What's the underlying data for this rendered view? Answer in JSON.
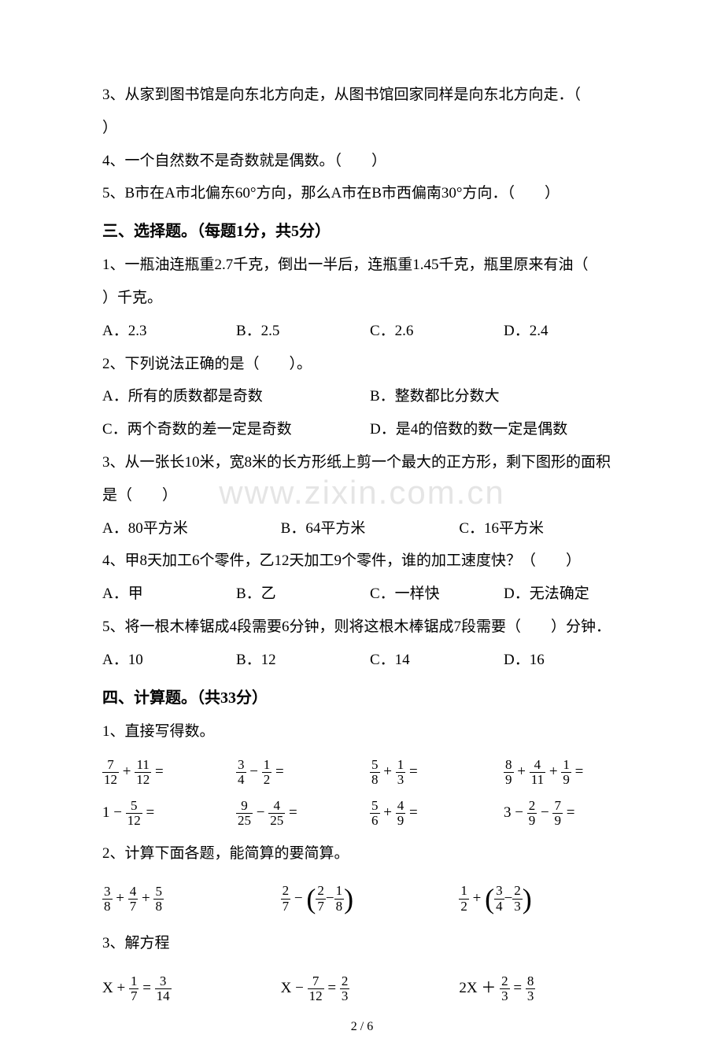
{
  "page": {
    "number": "2 / 6",
    "watermark": "www.zixin.com.cn"
  },
  "section2_continued": {
    "q3": "3、从家到图书馆是向东北方向走，从图书馆回家同样是向东北方向走．（",
    "q3_close": "）",
    "q4": "4、一个自然数不是奇数就是偶数。（　　）",
    "q5": "5、B市在A市北偏东60°方向，那么A市在B市西偏南30°方向．（　　）"
  },
  "section3": {
    "title": "三、选择题。（每题1分，共5分）",
    "q1": {
      "text": "1、一瓶油连瓶重2.7千克，倒出一半后，连瓶重1.45千克，瓶里原来有油（",
      "unit": "）千克。",
      "options": {
        "a": "A．2.3",
        "b": "B．2.5",
        "c": "C．2.6",
        "d": "D．2.4"
      }
    },
    "q2": {
      "text": "2、下列说法正确的是（　　）。",
      "options": {
        "a": "A．所有的质数都是奇数",
        "b": "B．整数都比分数大",
        "c": "C．两个奇数的差一定是奇数",
        "d": "D．是4的倍数的数一定是偶数"
      }
    },
    "q3": {
      "text": "3、从一张长10米，宽8米的长方形纸上剪一个最大的正方形，剩下图形的面积",
      "text2": "是（　　）",
      "options": {
        "a": "A．80平方米",
        "b": "B．64平方米",
        "c": "C．16平方米"
      }
    },
    "q4": {
      "text": "4、甲8天加工6个零件，乙12天加工9个零件，谁的加工速度快？（　　）",
      "options": {
        "a": "A．甲",
        "b": "B．乙",
        "c": "C．一样快",
        "d": "D．无法确定"
      }
    },
    "q5": {
      "text": "5、将一根木棒锯成4段需要6分钟，则将这根木棒锯成7段需要（　　）分钟．",
      "options": {
        "a": "A．10",
        "b": "B．12",
        "c": "C．14",
        "d": "D．16"
      }
    }
  },
  "section4": {
    "title": "四、计算题。（共33分）",
    "sub1": {
      "label": "1、直接写得数。",
      "row1": {
        "e1": {
          "t1n": "7",
          "t1d": "12",
          "op": "+",
          "t2n": "11",
          "t2d": "12"
        },
        "e2": {
          "t1n": "3",
          "t1d": "4",
          "op": "−",
          "t2n": "1",
          "t2d": "2"
        },
        "e3": {
          "t1n": "5",
          "t1d": "8",
          "op": "+",
          "t2n": "1",
          "t2d": "3"
        },
        "e4": {
          "t1n": "8",
          "t1d": "9",
          "op1": "+",
          "t2n": "4",
          "t2d": "11",
          "op2": "+",
          "t3n": "1",
          "t3d": "9"
        }
      },
      "row2": {
        "e1": {
          "whole": "1",
          "op": "−",
          "t1n": "5",
          "t1d": "12"
        },
        "e2": {
          "t1n": "9",
          "t1d": "25",
          "op": "−",
          "t2n": "4",
          "t2d": "25"
        },
        "e3": {
          "t1n": "5",
          "t1d": "6",
          "op": "+",
          "t2n": "4",
          "t2d": "9"
        },
        "e4": {
          "whole": "3",
          "op1": "−",
          "t1n": "2",
          "t1d": "9",
          "op2": "−",
          "t2n": "7",
          "t2d": "9"
        }
      }
    },
    "sub2": {
      "label": "2、计算下面各题，能简算的要简算。",
      "row1": {
        "e1": {
          "t1n": "3",
          "t1d": "8",
          "op1": "+",
          "t2n": "4",
          "t2d": "7",
          "op2": "+",
          "t3n": "5",
          "t3d": "8"
        },
        "e2": {
          "t1n": "2",
          "t1d": "7",
          "op": "−",
          "pt1n": "2",
          "pt1d": "7",
          "pop": "−",
          "pt2n": "1",
          "pt2d": "8"
        },
        "e3": {
          "t1n": "1",
          "t1d": "2",
          "op": "+",
          "pt1n": "3",
          "pt1d": "4",
          "pop": "−",
          "pt2n": "2",
          "pt2d": "3"
        }
      }
    },
    "sub3": {
      "label": "3、解方程",
      "row1": {
        "e1": {
          "var": "X ",
          "op": "+",
          "t1n": "1",
          "t1d": "7",
          "eq": "=",
          "t2n": "3",
          "t2d": "14"
        },
        "e2": {
          "var": "X ",
          "op": "−",
          "t1n": "7",
          "t1d": "12",
          "eq": "=",
          "t2n": "2",
          "t2d": "3"
        },
        "e3": {
          "var": "2X ",
          "op": "＋ ",
          "t1n": "2",
          "t1d": "3",
          "eq": "=",
          "t2n": "8",
          "t2d": "3"
        }
      }
    }
  }
}
